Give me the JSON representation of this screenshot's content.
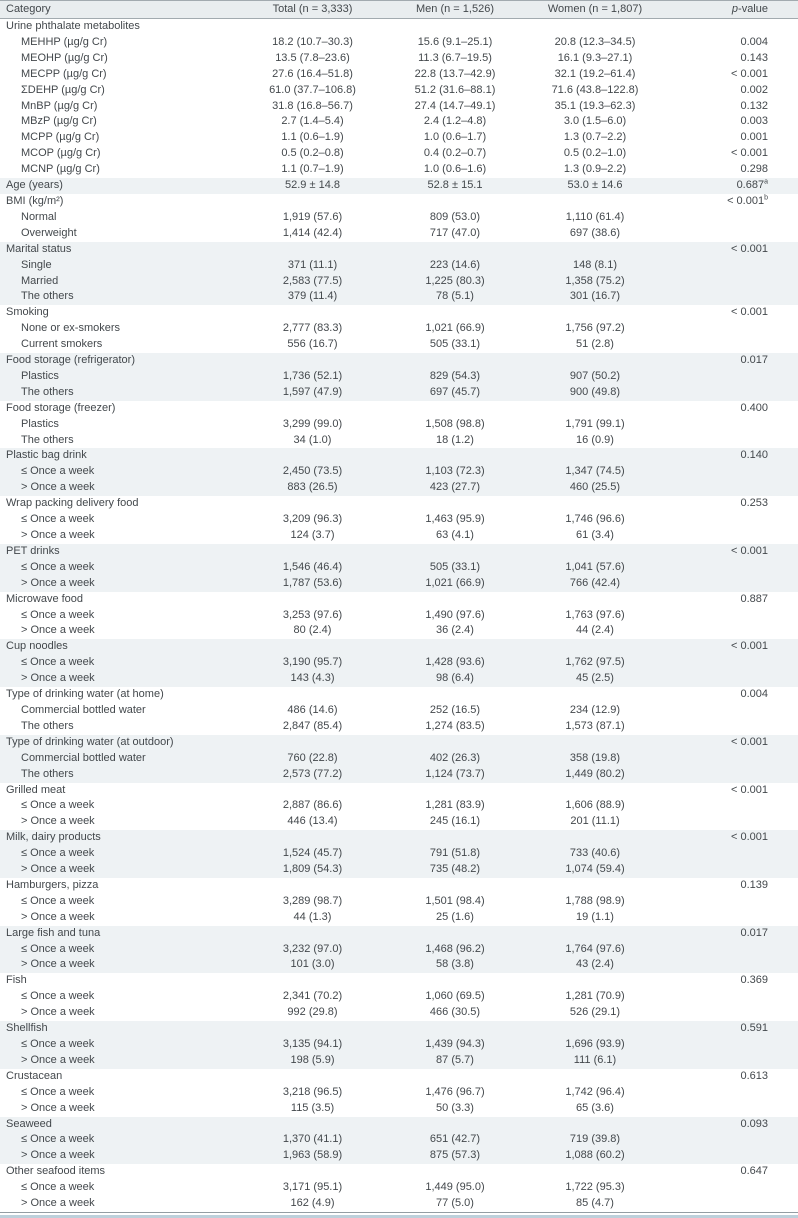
{
  "table": {
    "columns": {
      "category": "Category",
      "total": "Total (n = 3,333)",
      "men": "Men (n = 1,526)",
      "women": "Women (n = 1,807)",
      "p_italic": "p",
      "p_rest": "-value"
    },
    "rows": [
      {
        "indent": 0,
        "band": false,
        "label": "Urine phthalate metabolites",
        "total": "",
        "men": "",
        "women": "",
        "p": ""
      },
      {
        "indent": 1,
        "band": false,
        "label": "MEHHP (µg/g Cr)",
        "total": "18.2 (10.7–30.3)",
        "men": "15.6 (9.1–25.1)",
        "women": "20.8 (12.3–34.5)",
        "p": "0.004"
      },
      {
        "indent": 1,
        "band": false,
        "label": "MEOHP (µg/g Cr)",
        "total": "13.5 (7.8–23.6)",
        "men": "11.3 (6.7–19.5)",
        "women": "16.1 (9.3–27.1)",
        "p": "0.143"
      },
      {
        "indent": 1,
        "band": false,
        "label": "MECPP (µg/g Cr)",
        "total": "27.6 (16.4–51.8)",
        "men": "22.8 (13.7–42.9)",
        "women": "32.1 (19.2–61.4)",
        "p": "< 0.001"
      },
      {
        "indent": 1,
        "band": false,
        "label": "ΣDEHP (µg/g Cr)",
        "total": "61.0 (37.7–106.8)",
        "men": "51.2 (31.6–88.1)",
        "women": "71.6 (43.8–122.8)",
        "p": "0.002"
      },
      {
        "indent": 1,
        "band": false,
        "label": "MnBP (µg/g Cr)",
        "total": "31.8 (16.8–56.7)",
        "men": "27.4 (14.7–49.1)",
        "women": "35.1 (19.3–62.3)",
        "p": "0.132"
      },
      {
        "indent": 1,
        "band": false,
        "label": "MBzP (µg/g Cr)",
        "total": "2.7 (1.4–5.4)",
        "men": "2.4 (1.2–4.8)",
        "women": "3.0 (1.5–6.0)",
        "p": "0.003"
      },
      {
        "indent": 1,
        "band": false,
        "label": "MCPP (µg/g Cr)",
        "total": "1.1 (0.6–1.9)",
        "men": "1.0 (0.6–1.7)",
        "women": "1.3 (0.7–2.2)",
        "p": "0.001"
      },
      {
        "indent": 1,
        "band": false,
        "label": "MCOP (µg/g Cr)",
        "total": "0.5 (0.2–0.8)",
        "men": "0.4 (0.2–0.7)",
        "women": "0.5 (0.2–1.0)",
        "p": "< 0.001"
      },
      {
        "indent": 1,
        "band": false,
        "label": "MCNP (µg/g Cr)",
        "total": "1.1 (0.7–1.9)",
        "men": "1.0 (0.6–1.6)",
        "women": "1.3 (0.9–2.2)",
        "p": "0.298"
      },
      {
        "indent": 0,
        "band": true,
        "label": "Age (years)",
        "total": "52.9 ± 14.8",
        "men": "52.8 ± 15.1",
        "women": "53.0 ± 14.6",
        "p": "0.687",
        "p_sup": "a"
      },
      {
        "indent": 0,
        "band": false,
        "label": "BMI (kg/m²)",
        "total": "",
        "men": "",
        "women": "",
        "p": "< 0.001",
        "p_sup": "b"
      },
      {
        "indent": 1,
        "band": false,
        "label": "Normal",
        "total": "1,919 (57.6)",
        "men": "809 (53.0)",
        "women": "1,110 (61.4)",
        "p": ""
      },
      {
        "indent": 1,
        "band": false,
        "label": "Overweight",
        "total": "1,414 (42.4)",
        "men": "717 (47.0)",
        "women": "697 (38.6)",
        "p": ""
      },
      {
        "indent": 0,
        "band": true,
        "label": "Marital status",
        "total": "",
        "men": "",
        "women": "",
        "p": "< 0.001"
      },
      {
        "indent": 1,
        "band": true,
        "label": "Single",
        "total": "371 (11.1)",
        "men": "223 (14.6)",
        "women": "148 (8.1)",
        "p": ""
      },
      {
        "indent": 1,
        "band": true,
        "label": "Married",
        "total": "2,583 (77.5)",
        "men": "1,225 (80.3)",
        "women": "1,358 (75.2)",
        "p": ""
      },
      {
        "indent": 1,
        "band": true,
        "label": "The others",
        "total": "379 (11.4)",
        "men": "78 (5.1)",
        "women": "301 (16.7)",
        "p": ""
      },
      {
        "indent": 0,
        "band": false,
        "label": "Smoking",
        "total": "",
        "men": "",
        "women": "",
        "p": "< 0.001"
      },
      {
        "indent": 1,
        "band": false,
        "label": "None or ex-smokers",
        "total": "2,777 (83.3)",
        "men": "1,021 (66.9)",
        "women": "1,756 (97.2)",
        "p": ""
      },
      {
        "indent": 1,
        "band": false,
        "label": "Current smokers",
        "total": "556 (16.7)",
        "men": "505 (33.1)",
        "women": "51 (2.8)",
        "p": ""
      },
      {
        "indent": 0,
        "band": true,
        "label": "Food storage (refrigerator)",
        "total": "",
        "men": "",
        "women": "",
        "p": "0.017"
      },
      {
        "indent": 1,
        "band": true,
        "label": "Plastics",
        "total": "1,736 (52.1)",
        "men": "829 (54.3)",
        "women": "907 (50.2)",
        "p": ""
      },
      {
        "indent": 1,
        "band": true,
        "label": "The others",
        "total": "1,597 (47.9)",
        "men": "697 (45.7)",
        "women": "900 (49.8)",
        "p": ""
      },
      {
        "indent": 0,
        "band": false,
        "label": "Food storage (freezer)",
        "total": "",
        "men": "",
        "women": "",
        "p": "0.400"
      },
      {
        "indent": 1,
        "band": false,
        "label": "Plastics",
        "total": "3,299 (99.0)",
        "men": "1,508 (98.8)",
        "women": "1,791 (99.1)",
        "p": ""
      },
      {
        "indent": 1,
        "band": false,
        "label": "The others",
        "total": "34 (1.0)",
        "men": "18 (1.2)",
        "women": "16 (0.9)",
        "p": ""
      },
      {
        "indent": 0,
        "band": true,
        "label": "Plastic bag drink",
        "total": "",
        "men": "",
        "women": "",
        "p": "0.140"
      },
      {
        "indent": 1,
        "band": true,
        "label": "≤ Once a week",
        "total": "2,450 (73.5)",
        "men": "1,103 (72.3)",
        "women": "1,347 (74.5)",
        "p": ""
      },
      {
        "indent": 1,
        "band": true,
        "label": "> Once a week",
        "total": "883 (26.5)",
        "men": "423 (27.7)",
        "women": "460 (25.5)",
        "p": ""
      },
      {
        "indent": 0,
        "band": false,
        "label": "Wrap packing delivery food",
        "total": "",
        "men": "",
        "women": "",
        "p": "0.253"
      },
      {
        "indent": 1,
        "band": false,
        "label": "≤ Once a week",
        "total": "3,209 (96.3)",
        "men": "1,463 (95.9)",
        "women": "1,746 (96.6)",
        "p": ""
      },
      {
        "indent": 1,
        "band": false,
        "label": "> Once a week",
        "total": "124 (3.7)",
        "men": "63 (4.1)",
        "women": "61 (3.4)",
        "p": ""
      },
      {
        "indent": 0,
        "band": true,
        "label": "PET drinks",
        "total": "",
        "men": "",
        "women": "",
        "p": "< 0.001"
      },
      {
        "indent": 1,
        "band": true,
        "label": "≤ Once a week",
        "total": "1,546 (46.4)",
        "men": "505 (33.1)",
        "women": "1,041 (57.6)",
        "p": ""
      },
      {
        "indent": 1,
        "band": true,
        "label": "> Once a week",
        "total": "1,787 (53.6)",
        "men": "1,021 (66.9)",
        "women": "766 (42.4)",
        "p": ""
      },
      {
        "indent": 0,
        "band": false,
        "label": "Microwave food",
        "total": "",
        "men": "",
        "women": "",
        "p": "0.887"
      },
      {
        "indent": 1,
        "band": false,
        "label": "≤ Once a week",
        "total": "3,253 (97.6)",
        "men": "1,490 (97.6)",
        "women": "1,763 (97.6)",
        "p": ""
      },
      {
        "indent": 1,
        "band": false,
        "label": "> Once a week",
        "total": "80 (2.4)",
        "men": "36 (2.4)",
        "women": "44 (2.4)",
        "p": ""
      },
      {
        "indent": 0,
        "band": true,
        "label": "Cup noodles",
        "total": "",
        "men": "",
        "women": "",
        "p": "< 0.001"
      },
      {
        "indent": 1,
        "band": true,
        "label": "≤ Once a week",
        "total": "3,190 (95.7)",
        "men": "1,428 (93.6)",
        "women": "1,762 (97.5)",
        "p": ""
      },
      {
        "indent": 1,
        "band": true,
        "label": "> Once a week",
        "total": "143 (4.3)",
        "men": "98 (6.4)",
        "women": "45 (2.5)",
        "p": ""
      },
      {
        "indent": 0,
        "band": false,
        "label": "Type of drinking water (at home)",
        "total": "",
        "men": "",
        "women": "",
        "p": "0.004"
      },
      {
        "indent": 1,
        "band": false,
        "label": "Commercial bottled water",
        "total": "486 (14.6)",
        "men": "252 (16.5)",
        "women": "234 (12.9)",
        "p": ""
      },
      {
        "indent": 1,
        "band": false,
        "label": "The others",
        "total": "2,847 (85.4)",
        "men": "1,274 (83.5)",
        "women": "1,573 (87.1)",
        "p": ""
      },
      {
        "indent": 0,
        "band": true,
        "label": "Type of drinking water (at outdoor)",
        "total": "",
        "men": "",
        "women": "",
        "p": "< 0.001"
      },
      {
        "indent": 1,
        "band": true,
        "label": "Commercial bottled water",
        "total": "760 (22.8)",
        "men": "402 (26.3)",
        "women": "358 (19.8)",
        "p": ""
      },
      {
        "indent": 1,
        "band": true,
        "label": "The others",
        "total": "2,573 (77.2)",
        "men": "1,124 (73.7)",
        "women": "1,449 (80.2)",
        "p": ""
      },
      {
        "indent": 0,
        "band": false,
        "label": "Grilled meat",
        "total": "",
        "men": "",
        "women": "",
        "p": "< 0.001"
      },
      {
        "indent": 1,
        "band": false,
        "label": "≤ Once a week",
        "total": "2,887 (86.6)",
        "men": "1,281 (83.9)",
        "women": "1,606 (88.9)",
        "p": ""
      },
      {
        "indent": 1,
        "band": false,
        "label": "> Once a week",
        "total": "446 (13.4)",
        "men": "245 (16.1)",
        "women": "201 (11.1)",
        "p": ""
      },
      {
        "indent": 0,
        "band": true,
        "label": "Milk, dairy products",
        "total": "",
        "men": "",
        "women": "",
        "p": "< 0.001"
      },
      {
        "indent": 1,
        "band": true,
        "label": "≤ Once a week",
        "total": "1,524 (45.7)",
        "men": "791 (51.8)",
        "women": "733 (40.6)",
        "p": ""
      },
      {
        "indent": 1,
        "band": true,
        "label": "> Once a week",
        "total": "1,809 (54.3)",
        "men": "735 (48.2)",
        "women": "1,074 (59.4)",
        "p": ""
      },
      {
        "indent": 0,
        "band": false,
        "label": "Hamburgers, pizza",
        "total": "",
        "men": "",
        "women": "",
        "p": "0.139"
      },
      {
        "indent": 1,
        "band": false,
        "label": "≤ Once a week",
        "total": "3,289 (98.7)",
        "men": "1,501 (98.4)",
        "women": "1,788 (98.9)",
        "p": ""
      },
      {
        "indent": 1,
        "band": false,
        "label": "> Once a week",
        "total": "44 (1.3)",
        "men": "25 (1.6)",
        "women": "19 (1.1)",
        "p": ""
      },
      {
        "indent": 0,
        "band": true,
        "label": "Large fish and tuna",
        "total": "",
        "men": "",
        "women": "",
        "p": "0.017"
      },
      {
        "indent": 1,
        "band": true,
        "label": "≤ Once a week",
        "total": "3,232 (97.0)",
        "men": "1,468 (96.2)",
        "women": "1,764 (97.6)",
        "p": ""
      },
      {
        "indent": 1,
        "band": true,
        "label": "> Once a week",
        "total": "101 (3.0)",
        "men": "58 (3.8)",
        "women": "43 (2.4)",
        "p": ""
      },
      {
        "indent": 0,
        "band": false,
        "label": "Fish",
        "total": "",
        "men": "",
        "women": "",
        "p": "0.369"
      },
      {
        "indent": 1,
        "band": false,
        "label": "≤ Once a week",
        "total": "2,341 (70.2)",
        "men": "1,060 (69.5)",
        "women": "1,281 (70.9)",
        "p": ""
      },
      {
        "indent": 1,
        "band": false,
        "label": "> Once a week",
        "total": "992 (29.8)",
        "men": "466 (30.5)",
        "women": "526 (29.1)",
        "p": ""
      },
      {
        "indent": 0,
        "band": true,
        "label": "Shellfish",
        "total": "",
        "men": "",
        "women": "",
        "p": "0.591"
      },
      {
        "indent": 1,
        "band": true,
        "label": "≤ Once a week",
        "total": "3,135 (94.1)",
        "men": "1,439 (94.3)",
        "women": "1,696 (93.9)",
        "p": ""
      },
      {
        "indent": 1,
        "band": true,
        "label": "> Once a week",
        "total": "198 (5.9)",
        "men": "87 (5.7)",
        "women": "111 (6.1)",
        "p": ""
      },
      {
        "indent": 0,
        "band": false,
        "label": "Crustacean",
        "total": "",
        "men": "",
        "women": "",
        "p": "0.613"
      },
      {
        "indent": 1,
        "band": false,
        "label": "≤ Once a week",
        "total": "3,218 (96.5)",
        "men": "1,476 (96.7)",
        "women": "1,742 (96.4)",
        "p": ""
      },
      {
        "indent": 1,
        "band": false,
        "label": "> Once a week",
        "total": "115 (3.5)",
        "men": "50 (3.3)",
        "women": "65 (3.6)",
        "p": ""
      },
      {
        "indent": 0,
        "band": true,
        "label": "Seaweed",
        "total": "",
        "men": "",
        "women": "",
        "p": "0.093"
      },
      {
        "indent": 1,
        "band": true,
        "label": "≤ Once a week",
        "total": "1,370 (41.1)",
        "men": "651 (42.7)",
        "women": "719 (39.8)",
        "p": ""
      },
      {
        "indent": 1,
        "band": true,
        "label": "> Once a week",
        "total": "1,963 (58.9)",
        "men": "875 (57.3)",
        "women": "1,088 (60.2)",
        "p": ""
      },
      {
        "indent": 0,
        "band": false,
        "label": "Other seafood items",
        "total": "",
        "men": "",
        "women": "",
        "p": "0.647"
      },
      {
        "indent": 1,
        "band": false,
        "label": "≤ Once a week",
        "total": "3,171 (95.1)",
        "men": "1,449 (95.0)",
        "women": "1,722 (95.3)",
        "p": ""
      },
      {
        "indent": 1,
        "band": false,
        "label": "> Once a week",
        "total": "162 (4.9)",
        "men": "77 (5.0)",
        "women": "85 (4.7)",
        "p": ""
      }
    ]
  }
}
